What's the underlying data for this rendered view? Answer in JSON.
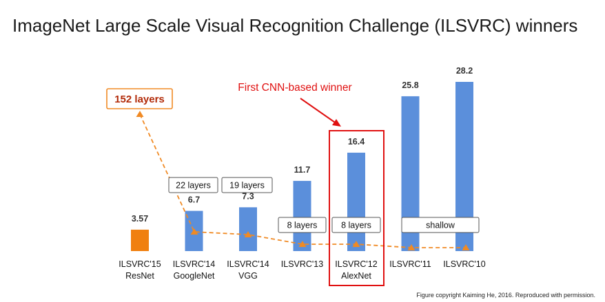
{
  "title": "ImageNet Large Scale Visual Recognition Challenge (ILSVRC) winners",
  "footer": "Figure copyright Kaiming He, 2016. Reproduced with permission.",
  "colors": {
    "primary_bar": "#5b8fdb",
    "highlight_bar": "#f08010",
    "dashed_line": "#f08a24",
    "callout_red": "#e01010",
    "depth_box_text": "#b22a08"
  },
  "chart_data": {
    "type": "bar",
    "title": "ImageNet Large Scale Visual Recognition Challenge (ILSVRC) winners",
    "categories": [
      {
        "year": "ILSVRC'15",
        "model": "ResNet"
      },
      {
        "year": "ILSVRC'14",
        "model": "GoogleNet"
      },
      {
        "year": "ILSVRC'14",
        "model": "VGG"
      },
      {
        "year": "ILSVRC'13",
        "model": ""
      },
      {
        "year": "ILSVRC'12",
        "model": "AlexNet"
      },
      {
        "year": "ILSVRC'11",
        "model": ""
      },
      {
        "year": "ILSVRC'10",
        "model": ""
      }
    ],
    "values": [
      3.57,
      6.7,
      7.3,
      11.7,
      16.4,
      25.8,
      28.2
    ],
    "value_labels": [
      "3.57",
      "6.7",
      "7.3",
      "11.7",
      "16.4",
      "25.8",
      "28.2"
    ],
    "highlight_index": 0,
    "ylim": [
      0,
      28.2
    ],
    "grid": false,
    "legend": "none",
    "depth_labels": [
      {
        "text": "152 layers",
        "covers": [
          0
        ]
      },
      {
        "text": "22 layers",
        "covers": [
          1
        ]
      },
      {
        "text": "19 layers",
        "covers": [
          2
        ]
      },
      {
        "text": "8 layers",
        "covers": [
          3
        ]
      },
      {
        "text": "8 layers",
        "covers": [
          4
        ]
      },
      {
        "text": "shallow",
        "covers": [
          5,
          6
        ]
      }
    ],
    "depth_trend_line": {
      "style": "dashed",
      "markers": "triangle"
    },
    "annotation": {
      "text": "First CNN-based winner",
      "target_index": 4
    }
  }
}
